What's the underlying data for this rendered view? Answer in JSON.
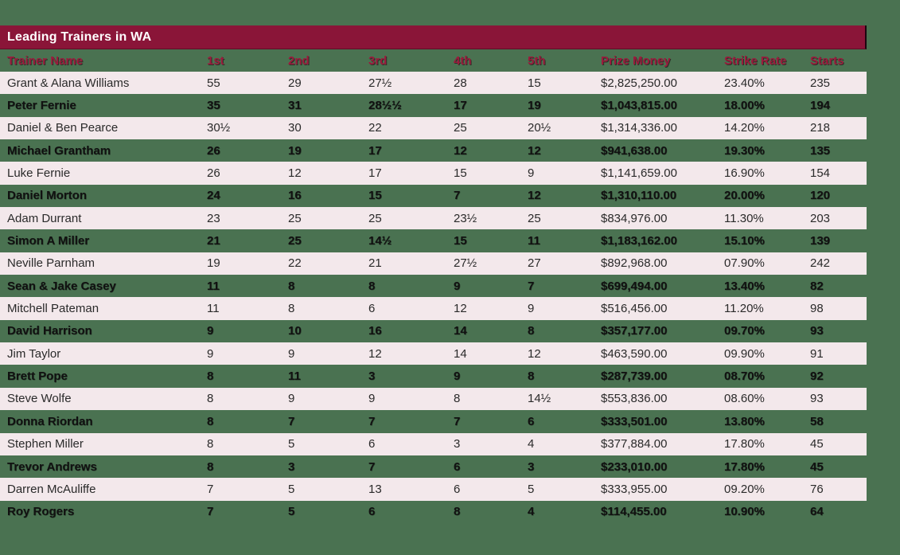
{
  "title": "Leading Trainers in WA",
  "colors": {
    "background_green": "#4A7251",
    "title_bar_maroon": "#8A1538",
    "title_text": "#FFFFFF",
    "header_text_crimson": "#9B1B3D",
    "row_pink": "#F3E8EB",
    "data_text": "#111111"
  },
  "chart_data": {
    "type": "table",
    "title": "Leading Trainers in WA",
    "columns": [
      "Trainer Name",
      "1st",
      "2nd",
      "3rd",
      "4th",
      "5th",
      "Prize Money",
      "Strike Rate",
      "Starts"
    ],
    "rows": [
      [
        "Grant & Alana Williams",
        "55",
        "29",
        "27½",
        "28",
        "15",
        "$2,825,250.00",
        "23.40%",
        "235"
      ],
      [
        "Peter Fernie",
        "35",
        "31",
        "28½½",
        "17",
        "19",
        "$1,043,815.00",
        "18.00%",
        "194"
      ],
      [
        "Daniel & Ben Pearce",
        "30½",
        "30",
        "22",
        "25",
        "20½",
        "$1,314,336.00",
        "14.20%",
        "218"
      ],
      [
        "Michael Grantham",
        "26",
        "19",
        "17",
        "12",
        "12",
        "$941,638.00",
        "19.30%",
        "135"
      ],
      [
        "Luke Fernie",
        "26",
        "12",
        "17",
        "15",
        "9",
        "$1,141,659.00",
        "16.90%",
        "154"
      ],
      [
        "Daniel Morton",
        "24",
        "16",
        "15",
        "7",
        "12",
        "$1,310,110.00",
        "20.00%",
        "120"
      ],
      [
        "Adam Durrant",
        "23",
        "25",
        "25",
        "23½",
        "25",
        "$834,976.00",
        "11.30%",
        "203"
      ],
      [
        "Simon A Miller",
        "21",
        "25",
        "14½",
        "15",
        "11",
        "$1,183,162.00",
        "15.10%",
        "139"
      ],
      [
        "Neville Parnham",
        "19",
        "22",
        "21",
        "27½",
        "27",
        "$892,968.00",
        "07.90%",
        "242"
      ],
      [
        "Sean & Jake Casey",
        "11",
        "8",
        "8",
        "9",
        "7",
        "$699,494.00",
        "13.40%",
        "82"
      ],
      [
        "Mitchell Pateman",
        "11",
        "8",
        "6",
        "12",
        "9",
        "$516,456.00",
        "11.20%",
        "98"
      ],
      [
        "David Harrison",
        "9",
        "10",
        "16",
        "14",
        "8",
        "$357,177.00",
        "09.70%",
        "93"
      ],
      [
        "Jim Taylor",
        "9",
        "9",
        "12",
        "14",
        "12",
        "$463,590.00",
        "09.90%",
        "91"
      ],
      [
        "Brett Pope",
        "8",
        "11",
        "3",
        "9",
        "8",
        "$287,739.00",
        "08.70%",
        "92"
      ],
      [
        "Steve Wolfe",
        "8",
        "9",
        "9",
        "8",
        "14½",
        "$553,836.00",
        "08.60%",
        "93"
      ],
      [
        "Donna Riordan",
        "8",
        "7",
        "7",
        "7",
        "6",
        "$333,501.00",
        "13.80%",
        "58"
      ],
      [
        "Stephen Miller",
        "8",
        "5",
        "6",
        "3",
        "4",
        "$377,884.00",
        "17.80%",
        "45"
      ],
      [
        "Trevor Andrews",
        "8",
        "3",
        "7",
        "6",
        "3",
        "$233,010.00",
        "17.80%",
        "45"
      ],
      [
        "Darren McAuliffe",
        "7",
        "5",
        "13",
        "6",
        "5",
        "$333,955.00",
        "09.20%",
        "76"
      ],
      [
        "Roy Rogers",
        "7",
        "5",
        "6",
        "8",
        "4",
        "$114,455.00",
        "10.90%",
        "64"
      ]
    ]
  }
}
